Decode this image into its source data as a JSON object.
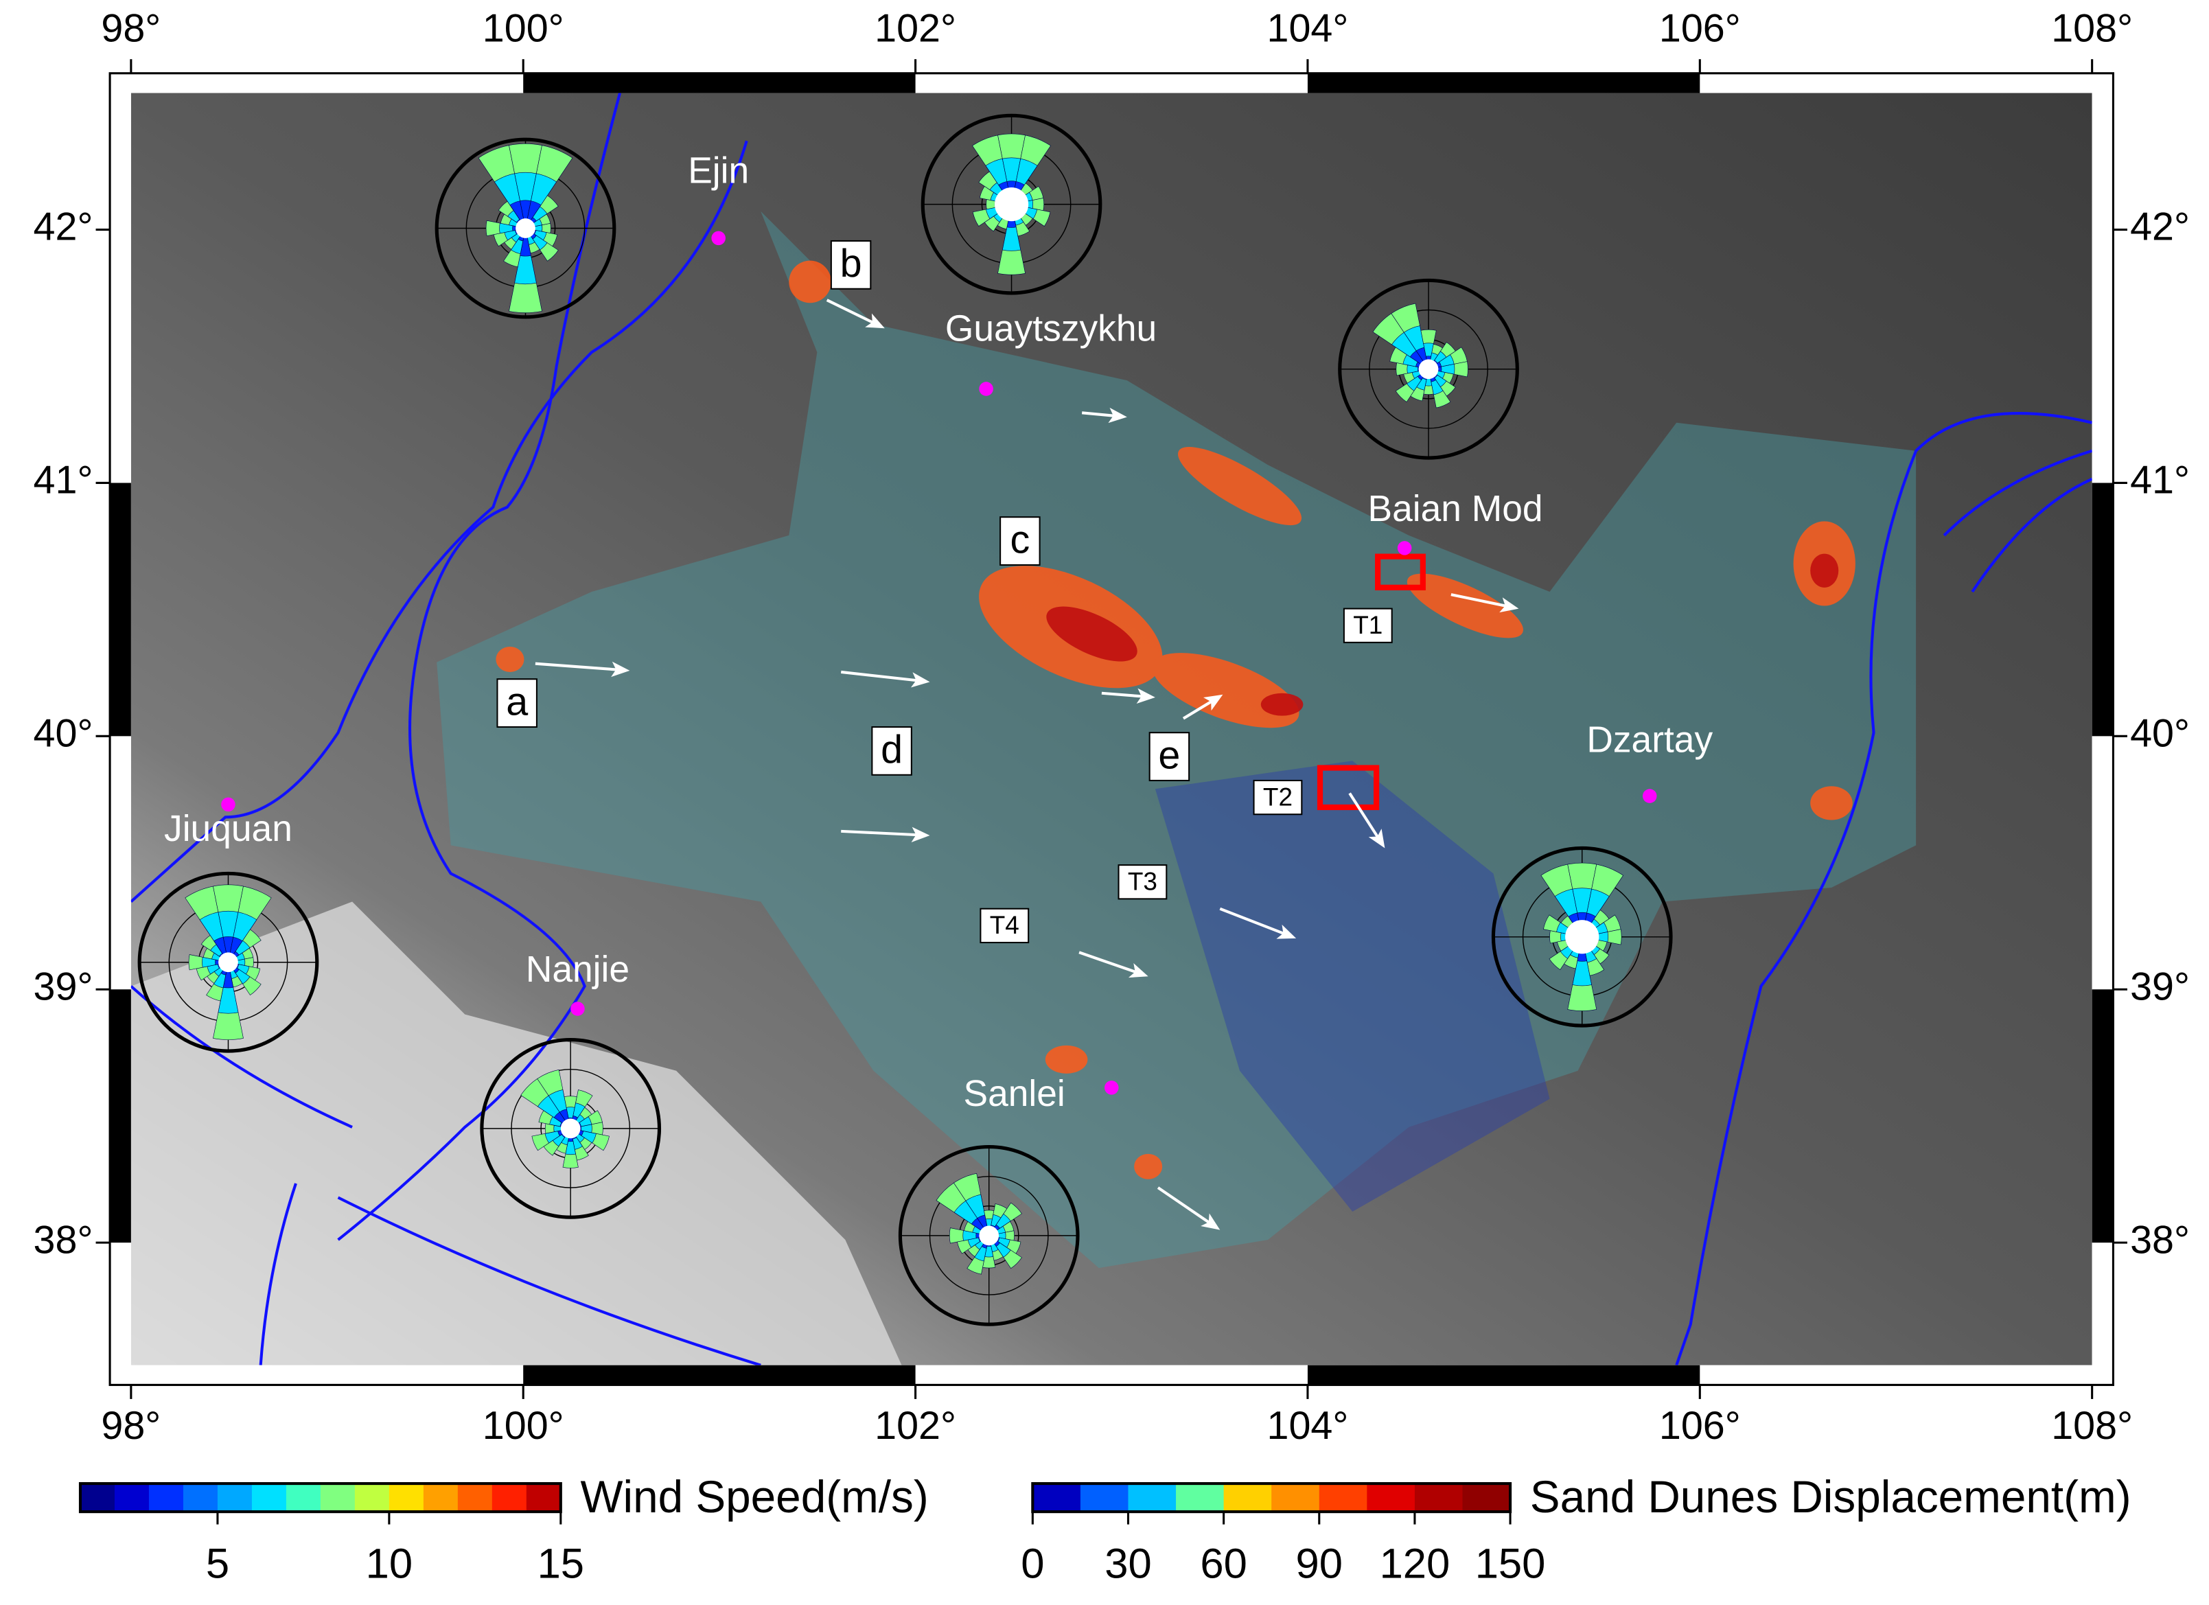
{
  "map": {
    "lon_ticks": [
      {
        "value": 98,
        "label": "98°"
      },
      {
        "value": 100,
        "label": "100°"
      },
      {
        "value": 102,
        "label": "102°"
      },
      {
        "value": 104,
        "label": "104°"
      },
      {
        "value": 106,
        "label": "106°"
      },
      {
        "value": 108,
        "label": "108°"
      }
    ],
    "lat_ticks": [
      {
        "value": 38,
        "label": "38°"
      },
      {
        "value": 39,
        "label": "39°"
      },
      {
        "value": 40,
        "label": "40°"
      },
      {
        "value": 41,
        "label": "41°"
      },
      {
        "value": 42,
        "label": "42°"
      }
    ],
    "places": [
      "Ejin",
      "Guaytszykhu",
      "Baian Mod",
      "Dzartay",
      "Jiuquan",
      "Nanjie",
      "Sanlei"
    ],
    "region_labels": [
      "a",
      "b",
      "c",
      "d",
      "e"
    ],
    "transects": [
      "T1",
      "T2",
      "T3",
      "T4"
    ]
  },
  "legend": {
    "wind_speed": {
      "title": "Wind Speed(m/s)",
      "range": [
        1,
        15
      ],
      "ticks": [
        5,
        10,
        15
      ],
      "colors": [
        "#00008f",
        "#0000d0",
        "#0030ff",
        "#0070ff",
        "#00a8ff",
        "#00e0ff",
        "#40ffc0",
        "#80ff80",
        "#c0ff40",
        "#ffe000",
        "#ffa000",
        "#ff6000",
        "#ff2000",
        "#c00000"
      ]
    },
    "displacement": {
      "title": "Sand Dunes Displacement(m)",
      "range": [
        0,
        150
      ],
      "ticks": [
        0,
        30,
        60,
        90,
        120,
        150
      ],
      "colors": [
        "#0000c0",
        "#0060ff",
        "#00c0ff",
        "#60ffa0",
        "#ffd000",
        "#ff9000",
        "#ff4000",
        "#e00000",
        "#b00000",
        "#900000"
      ]
    }
  }
}
